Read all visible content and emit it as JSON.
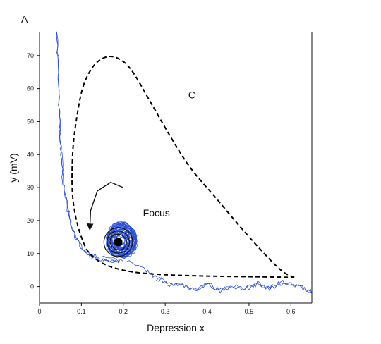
{
  "panel_label": "A",
  "chart_data": {
    "type": "line",
    "xlabel": "Depression x",
    "ylabel": "y (mV)",
    "xlim": [
      0,
      0.65
    ],
    "ylim": [
      -5,
      77
    ],
    "x_ticks": [
      0,
      0.1,
      0.2,
      0.3,
      0.4,
      0.5,
      0.6
    ],
    "x_tick_labels": [
      "0",
      "0.1",
      "0.2",
      "0.3",
      "0.4",
      "0.5",
      "0.6"
    ],
    "y_ticks": [
      0,
      10,
      20,
      30,
      40,
      50,
      60,
      70
    ],
    "y_tick_labels": [
      "0",
      "10",
      "20",
      "30",
      "40",
      "50",
      "60",
      "70"
    ],
    "grid": false,
    "colors": {
      "trajectory": "#2a4fd6",
      "cycle": "#000000",
      "focus": "#000000"
    },
    "series": [
      {
        "role": "limit-cycle",
        "style": "dashed",
        "points": [
          [
            0.608,
            2.8
          ],
          [
            0.58,
            4.6
          ],
          [
            0.54,
            9.5
          ],
          [
            0.48,
            18
          ],
          [
            0.42,
            27
          ],
          [
            0.36,
            36
          ],
          [
            0.31,
            46
          ],
          [
            0.26,
            57
          ],
          [
            0.22,
            65.5
          ],
          [
            0.19,
            69
          ],
          [
            0.16,
            69.6
          ],
          [
            0.13,
            67
          ],
          [
            0.105,
            61
          ],
          [
            0.09,
            52
          ],
          [
            0.08,
            42
          ],
          [
            0.078,
            30
          ],
          [
            0.085,
            22
          ],
          [
            0.1,
            15
          ],
          [
            0.12,
            10
          ],
          [
            0.16,
            6.5
          ],
          [
            0.22,
            4.5
          ],
          [
            0.3,
            3.6
          ],
          [
            0.4,
            3.2
          ],
          [
            0.5,
            3.0
          ],
          [
            0.608,
            2.8
          ]
        ]
      },
      {
        "role": "trajectory-approach",
        "points": [
          [
            0.042,
            77
          ],
          [
            0.044,
            65
          ],
          [
            0.047,
            53
          ],
          [
            0.05,
            44
          ],
          [
            0.054,
            36
          ],
          [
            0.06,
            29
          ],
          [
            0.068,
            23
          ],
          [
            0.078,
            18
          ],
          [
            0.09,
            14
          ],
          [
            0.105,
            11
          ],
          [
            0.122,
            9
          ],
          [
            0.145,
            8.2
          ],
          [
            0.17,
            7.7
          ],
          [
            0.19,
            7.6
          ]
        ]
      },
      {
        "role": "trajectory-tail",
        "points": [
          [
            0.28,
            2.6
          ],
          [
            0.31,
            0.8
          ],
          [
            0.34,
            0.6
          ],
          [
            0.37,
            -0.8
          ],
          [
            0.4,
            0.9
          ],
          [
            0.43,
            -1.2
          ],
          [
            0.46,
            0.3
          ],
          [
            0.49,
            -0.9
          ],
          [
            0.52,
            1.0
          ],
          [
            0.55,
            -0.4
          ],
          [
            0.58,
            1.4
          ],
          [
            0.61,
            0.2
          ],
          [
            0.63,
            -0.6
          ],
          [
            0.65,
            -1.6
          ]
        ]
      }
    ],
    "noisy_cloud": {
      "center": [
        0.196,
        14.0
      ],
      "x_spread": 0.07,
      "y_spread": 10
    },
    "focus_point": [
      0.188,
      13.5
    ],
    "focus_rings": [
      [
        0.02,
        2.3
      ],
      [
        0.027,
        3.3
      ],
      [
        0.034,
        4.4
      ]
    ],
    "rotation_arrow": {
      "points": [
        [
          0.2,
          30
        ],
        [
          0.17,
          31.6
        ],
        [
          0.138,
          29
        ],
        [
          0.122,
          23
        ],
        [
          0.12,
          17.4
        ]
      ]
    },
    "annotations": [
      {
        "text": "C",
        "x": 0.355,
        "y": 57
      },
      {
        "text": "Focus",
        "x": 0.247,
        "y": 21.3
      }
    ]
  }
}
